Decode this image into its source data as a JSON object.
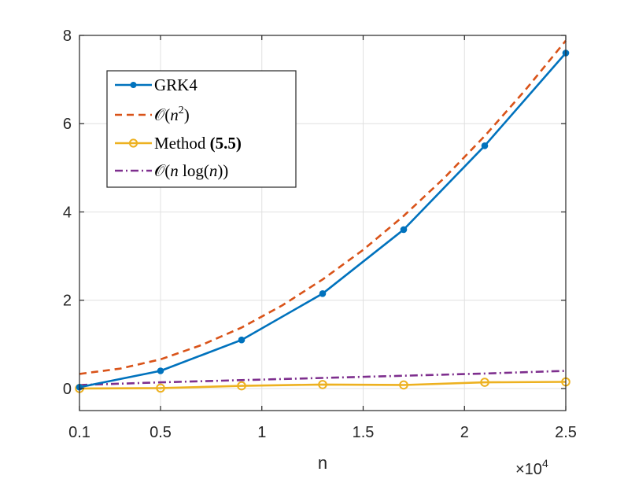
{
  "chart_data": {
    "type": "line",
    "xlabel": "n",
    "x_multiplier": "×10",
    "x_multiplier_exp": "4",
    "xlim": [
      0.1,
      2.5
    ],
    "ylim": [
      -0.5,
      8
    ],
    "xticks": [
      0.1,
      0.5,
      1,
      1.5,
      2,
      2.5
    ],
    "xtick_labels": [
      "0.1",
      "0.5",
      "1",
      "1.5",
      "2",
      "2.5"
    ],
    "yticks": [
      0,
      2,
      4,
      6,
      8
    ],
    "ytick_labels": [
      "0",
      "2",
      "4",
      "6",
      "8"
    ],
    "grid": true,
    "legend_position": "top-left",
    "series": [
      {
        "name": "GRK4",
        "label_parts": [
          "GRK4"
        ],
        "color": "#0072BD",
        "style": "solid",
        "marker": "dot",
        "x": [
          0.1,
          0.5,
          0.9,
          1.3,
          1.7,
          2.1,
          2.5
        ],
        "y": [
          0.03,
          0.4,
          1.1,
          2.15,
          3.6,
          5.5,
          7.6
        ]
      },
      {
        "name": "O(n^2)",
        "label_parts": [
          "𝒪(",
          "n",
          "2",
          ")"
        ],
        "color": "#D95319",
        "style": "dashed",
        "marker": "none",
        "x": [
          0.1,
          0.3,
          0.5,
          0.7,
          0.9,
          1.1,
          1.3,
          1.5,
          1.7,
          1.9,
          2.1,
          2.3,
          2.5
        ],
        "y": [
          0.33,
          0.45,
          0.66,
          0.98,
          1.38,
          1.88,
          2.47,
          3.14,
          3.91,
          4.77,
          5.72,
          6.76,
          7.88
        ]
      },
      {
        "name": "Method (5.5)",
        "label_parts": [
          "Method ",
          "(5.5)"
        ],
        "color": "#EDB120",
        "style": "solid",
        "marker": "circle",
        "x": [
          0.1,
          0.5,
          0.9,
          1.3,
          1.7,
          2.1,
          2.5
        ],
        "y": [
          0.0,
          0.01,
          0.06,
          0.09,
          0.08,
          0.14,
          0.15
        ]
      },
      {
        "name": "O(n log(n))",
        "label_parts": [
          "𝒪(",
          "n",
          " log(",
          "n",
          "))"
        ],
        "color": "#7E2F8E",
        "style": "dashdot",
        "marker": "none",
        "x": [
          0.1,
          0.5,
          0.9,
          1.3,
          1.7,
          2.1,
          2.5
        ],
        "y": [
          0.08,
          0.14,
          0.19,
          0.24,
          0.29,
          0.34,
          0.4
        ]
      }
    ]
  }
}
